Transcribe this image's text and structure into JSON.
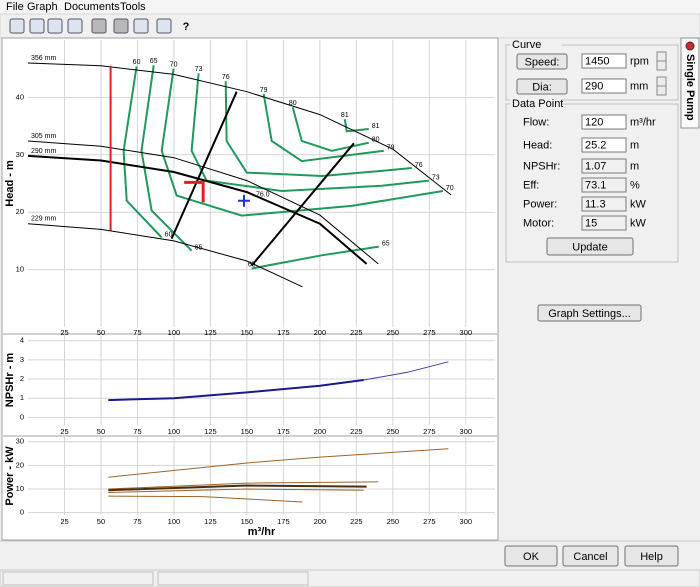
{
  "menu": [
    "File",
    "Graph",
    "Documents",
    "Tools"
  ],
  "toolbar": {
    "help": "?"
  },
  "graphs": [
    {
      "type": "line",
      "y_label": "Head - m",
      "xlim": [
        0,
        320
      ],
      "ylim": [
        0,
        50
      ],
      "xticks": [
        25,
        50,
        75,
        100,
        125,
        150,
        175,
        200,
        225,
        250,
        275,
        300
      ],
      "yticks": [
        10,
        20,
        30,
        40
      ],
      "grid": true,
      "series": [
        {
          "name": "356 mm",
          "color": "#000000",
          "line_width": 1,
          "x": [
            0,
            50,
            100,
            150,
            200,
            250,
            290
          ],
          "values": [
            46,
            45.5,
            44,
            41,
            37,
            31,
            23
          ]
        },
        {
          "name": "305 mm",
          "color": "#000000",
          "line_width": 1,
          "x": [
            0,
            50,
            100,
            150,
            200,
            240
          ],
          "values": [
            32.4,
            31.5,
            29.5,
            25.5,
            19.5,
            11
          ]
        },
        {
          "name": "290 mm",
          "color": "#000000",
          "line_width": 2,
          "x": [
            0,
            50,
            100,
            150,
            200,
            232
          ],
          "values": [
            29.8,
            29,
            27,
            23.5,
            18,
            11
          ]
        },
        {
          "name": "229 mm",
          "color": "#000000",
          "line_width": 1,
          "x": [
            0,
            50,
            100,
            150,
            188
          ],
          "values": [
            18,
            17,
            15,
            11.5,
            7
          ]
        }
      ],
      "contours": [
        {
          "label": "60",
          "color": "#1f9a5c",
          "x": [
            74.4,
            65.5,
            67.6,
            91.6
          ],
          "values": [
            45.4,
            30.7,
            22,
            15.6
          ]
        },
        {
          "label": "65",
          "color": "#1f9a5c",
          "x": [
            86.1,
            77.8,
            84.7,
            112.1
          ],
          "values": [
            45.6,
            30.7,
            20.3,
            13.3
          ]
        },
        {
          "label": "70",
          "color": "#1f9a5c",
          "x": [
            99.8,
            91.6,
            101.9,
            146.4,
            221.8,
            284.3
          ],
          "values": [
            45,
            30.7,
            22.9,
            19.4,
            21.1,
            23.7
          ]
        },
        {
          "label": "73",
          "color": "#1f9a5c",
          "x": [
            116.9,
            112.1,
            122.4,
            173.9,
            242.4,
            274.7
          ],
          "values": [
            44.2,
            30.7,
            25.5,
            23.7,
            24.6,
            25.5
          ]
        },
        {
          "label": "76",
          "color": "#1f9a5c",
          "x": [
            135.5,
            136.1,
            149.9,
            201.3,
            242.4,
            263
          ],
          "values": [
            42.8,
            32.4,
            26.9,
            26.3,
            27.2,
            27.7
          ]
        },
        {
          "label": "79",
          "color": "#1f9a5c",
          "x": [
            161.5,
            167,
            187.6,
            243.8
          ],
          "values": [
            40.6,
            32.4,
            28.9,
            30.7
          ]
        },
        {
          "label": "80",
          "color": "#1f9a5c",
          "x": [
            181.4,
            187.6,
            208.2,
            233.5
          ],
          "values": [
            38.3,
            32.4,
            30.7,
            32.1
          ]
        },
        {
          "label": "81",
          "color": "#1f9a5c",
          "x": [
            217.1,
            218.4,
            233.5
          ],
          "values": [
            36.2,
            34.1,
            34.5
          ]
        },
        {
          "label": "65",
          "color": "#1f9a5c",
          "x": [
            153.3,
            201.3,
            240.4
          ],
          "values": [
            10.2,
            12.5,
            14
          ]
        }
      ],
      "lines": [
        {
          "color": "#000000",
          "x": [
            98.4,
            143
          ],
          "values": [
            15.4,
            41
          ]
        },
        {
          "color": "#000000",
          "x": [
            153.3,
            223.3
          ],
          "values": [
            10.7,
            32
          ]
        },
        {
          "color": "#e02020",
          "x": [
            56.6,
            56.6
          ],
          "values": [
            45.5,
            16.8
          ]
        }
      ],
      "duty_point": {
        "x": 120,
        "y": 25.2,
        "color": "#e02020"
      },
      "marker": {
        "x": 148,
        "y": 22,
        "label": "76.0",
        "color": "#2233cc"
      }
    },
    {
      "type": "line",
      "y_label": "NPSHr - m",
      "xlim": [
        0,
        320
      ],
      "ylim": [
        -0.4,
        4.3
      ],
      "xticks": [
        25,
        50,
        75,
        100,
        125,
        150,
        175,
        200,
        225,
        250,
        275,
        300
      ],
      "yticks": [
        0,
        1,
        2,
        3,
        4
      ],
      "grid": true,
      "series": [
        {
          "color": "#1a1a8c",
          "line_width": 2,
          "x": [
            55,
            100,
            150,
            200,
            230
          ],
          "values": [
            0.9,
            1,
            1.3,
            1.65,
            1.95
          ]
        },
        {
          "color": "#3a3ab0",
          "line_width": 1,
          "x": [
            230,
            260,
            288
          ],
          "values": [
            1.95,
            2.35,
            2.9
          ]
        }
      ]
    },
    {
      "type": "line",
      "y_label": "Power - kW",
      "x_label": "m³/hr",
      "xlim": [
        0,
        320
      ],
      "ylim": [
        -1,
        32
      ],
      "xticks": [
        25,
        50,
        75,
        100,
        125,
        150,
        175,
        200,
        225,
        250,
        275,
        300
      ],
      "yticks": [
        0,
        10,
        20,
        30
      ],
      "grid": true,
      "series": [
        {
          "color": "#a0632c",
          "line_width": 1,
          "x": [
            55,
            150,
            200,
            288
          ],
          "values": [
            15,
            21,
            23.5,
            27
          ]
        },
        {
          "color": "#a0632c",
          "line_width": 1,
          "x": [
            55,
            150,
            240
          ],
          "values": [
            10,
            12.5,
            13
          ]
        },
        {
          "color": "#4a2e12",
          "line_width": 2,
          "x": [
            55,
            150,
            232
          ],
          "values": [
            9.5,
            11.5,
            11
          ]
        },
        {
          "color": "#a0632c",
          "line_width": 1,
          "x": [
            55,
            150,
            230
          ],
          "values": [
            8.5,
            10,
            9.5
          ]
        },
        {
          "color": "#a0632c",
          "line_width": 1,
          "x": [
            55,
            120,
            188
          ],
          "values": [
            7,
            6.8,
            4.5
          ]
        }
      ]
    }
  ],
  "panel": {
    "curve": {
      "title": "Curve",
      "fields": [
        {
          "button": "Speed:",
          "value": 1450,
          "unit": "rpm"
        },
        {
          "button": "Dia:",
          "value": 290,
          "unit": "mm"
        }
      ]
    },
    "data_point": {
      "title": "Data Point",
      "fields": [
        {
          "label": "Flow:",
          "value": 120,
          "unit": "m³/hr"
        },
        {
          "label": "Head:",
          "value": 25.2,
          "unit": "m"
        },
        {
          "label": "NPSHr:",
          "value": 1.07,
          "unit": "m"
        },
        {
          "label": "Eff:",
          "value": 73.1,
          "unit": "%"
        },
        {
          "label": "Power:",
          "value": 11.3,
          "unit": "kW"
        },
        {
          "label": "Motor:",
          "value": 15,
          "unit": "kW"
        }
      ],
      "button": "Update"
    },
    "graph_settings": "Graph Settings...",
    "tab": "Single Pump"
  },
  "footer": {
    "ok": "OK",
    "cancel": "Cancel",
    "help": "Help"
  }
}
